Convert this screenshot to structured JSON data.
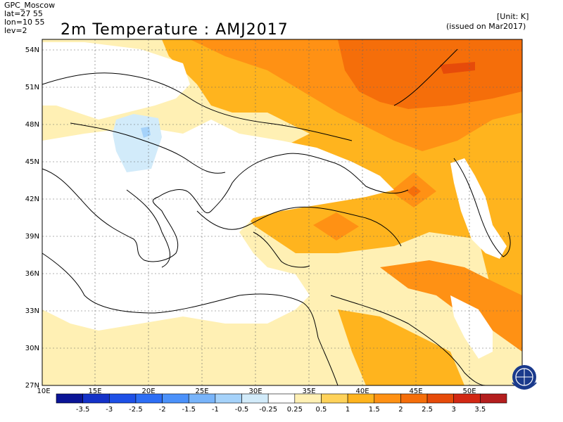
{
  "header": {
    "source": "GPC_Moscow",
    "lat": "lat=27 55",
    "lon": "lon=10 55",
    "lev": "lev=2",
    "title": "2m Temperature : AMJ2017",
    "unit": "[Unit: K]",
    "issued": "(issued on Mar2017)"
  },
  "map": {
    "lat_labels": [
      "54N",
      "51N",
      "48N",
      "45N",
      "42N",
      "39N",
      "36N",
      "33N",
      "30N",
      "27N"
    ],
    "lon_labels": [
      "10E",
      "15E",
      "20E",
      "25E",
      "30E",
      "35E",
      "40E",
      "45E",
      "50E"
    ]
  },
  "legend": {
    "labels": [
      "-3.5",
      "-3",
      "-2.5",
      "-2",
      "-1.5",
      "-1",
      "-0.5",
      "-0.25",
      "0.25",
      "0.5",
      "1",
      "1.5",
      "2",
      "2.5",
      "3",
      "3.5"
    ],
    "colors": [
      "#0a1496",
      "#1432c8",
      "#1e50e6",
      "#2d6ef5",
      "#4b91fa",
      "#78b4fa",
      "#a5d2fa",
      "#d2ebfa",
      "#ffffff",
      "#fff0b4",
      "#ffd25a",
      "#ffb41e",
      "#ff9114",
      "#f56e0a",
      "#e64b0a",
      "#d22814",
      "#b41e1e"
    ]
  }
}
